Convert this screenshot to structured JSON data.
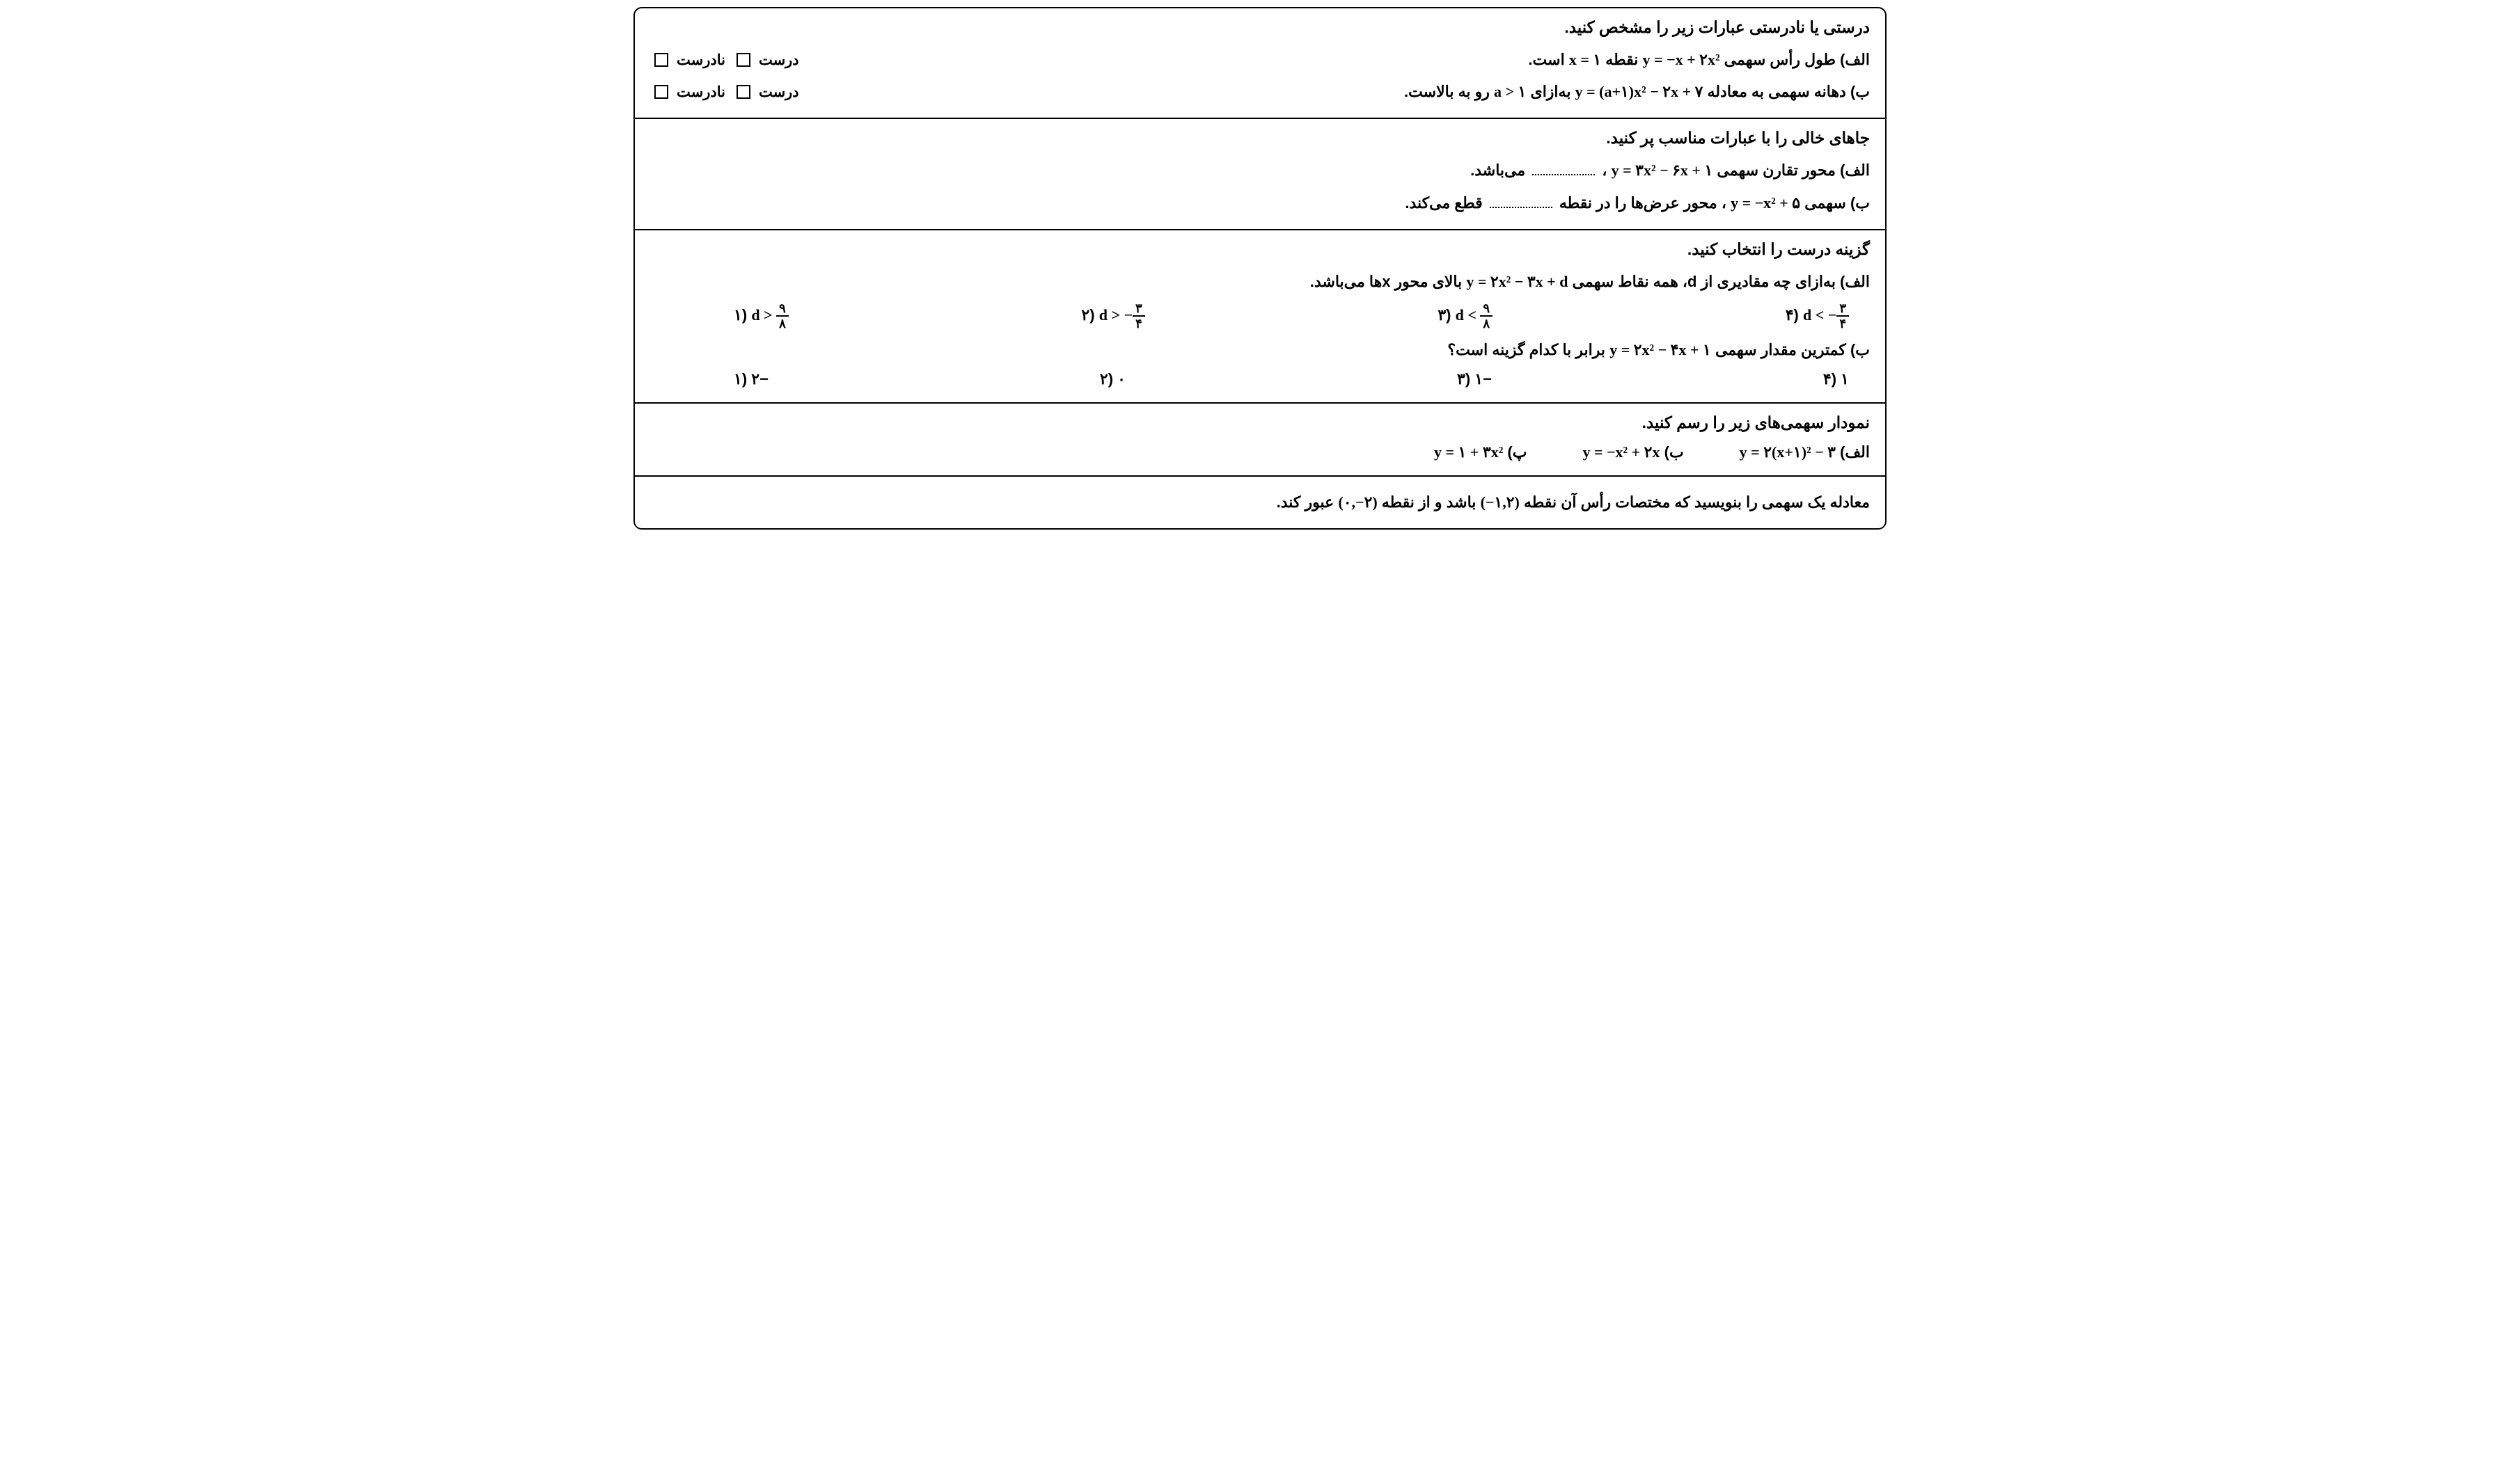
{
  "colors": {
    "text": "#000000",
    "background": "#ffffff",
    "border": "#000000"
  },
  "typography": {
    "body_font": "Tahoma",
    "math_font": "Times New Roman",
    "heading_size_pt": 17,
    "body_size_pt": 16
  },
  "tf_labels": {
    "true": "درست",
    "false": "نادرست"
  },
  "q1": {
    "heading": "درستی یا نادرستی عبارات زیر را مشخص کنید.",
    "a_pre": "الف) طول رأس سهمی ",
    "a_eq": "y = −x + ۲x²",
    "a_mid": " نقطه ",
    "a_eq2": "x = ۱",
    "a_post": " است.",
    "b_pre": "ب) دهانه سهمی به معادله ",
    "b_eq": "y = (a+۱)x² − ۲x + ۷",
    "b_mid": " به‌ازای ",
    "b_eq2": "a > ۱",
    "b_post": " رو به بالاست."
  },
  "q2": {
    "heading": "جاهای خالی را با عبارات مناسب پر کنید.",
    "a_pre": "الف) محور تقارن سهمی ",
    "a_eq": "y = ۳x² − ۶x + ۱",
    "a_post": " ، ",
    "a_tail": " می‌باشد.",
    "b_pre": "ب) سهمی ",
    "b_eq": "y = −x² + ۵",
    "b_mid": " ، محور عرض‌ها را در نقطه ",
    "b_tail": " قطع می‌کند."
  },
  "q3": {
    "heading": "گزینه درست را انتخاب کنید.",
    "a_pre": "الف) به‌ازای چه مقادیری از d، همه نقاط سهمی ",
    "a_eq": "y = ۲x² − ۳x + d",
    "a_post": " بالای محور xها می‌باشد.",
    "a_options": {
      "o1_label": "۱)",
      "o1_math_pre": "d > ",
      "o1_num": "۹",
      "o1_den": "۸",
      "o2_label": "۲)",
      "o2_math_pre": "d > −",
      "o2_num": "۳",
      "o2_den": "۴",
      "o3_label": "۳)",
      "o3_math_pre": "d < ",
      "o3_num": "۹",
      "o3_den": "۸",
      "o4_label": "۴)",
      "o4_math_pre": "d < −",
      "o4_num": "۳",
      "o4_den": "۴"
    },
    "b_pre": "ب) کمترین مقدار سهمی ",
    "b_eq": "y = ۲x² − ۴x + ۱",
    "b_post": " برابر با کدام گزینه است؟",
    "b_options": {
      "o1": "۱) ۲−",
      "o2": "۲) ۰",
      "o3": "۳) ۱−",
      "o4": "۴) ۱"
    }
  },
  "q4": {
    "heading": "نمودار سهمی‌های زیر را رسم کنید.",
    "a_label": "الف) ",
    "a_eq": "y = ۲(x+۱)² − ۳",
    "b_label": "ب) ",
    "b_eq": "y = −x² + ۲x",
    "p_label": "پ) ",
    "p_eq": "y = ۱ + ۳x²"
  },
  "q5": {
    "pre": "معادله یک سهمی را بنویسید که مختصات رأس آن نقطه ",
    "pt1": "(−۱,۲)",
    "mid": " باشد و از نقطه ",
    "pt2": "(۰,−۲)",
    "post": " عبور کند."
  }
}
